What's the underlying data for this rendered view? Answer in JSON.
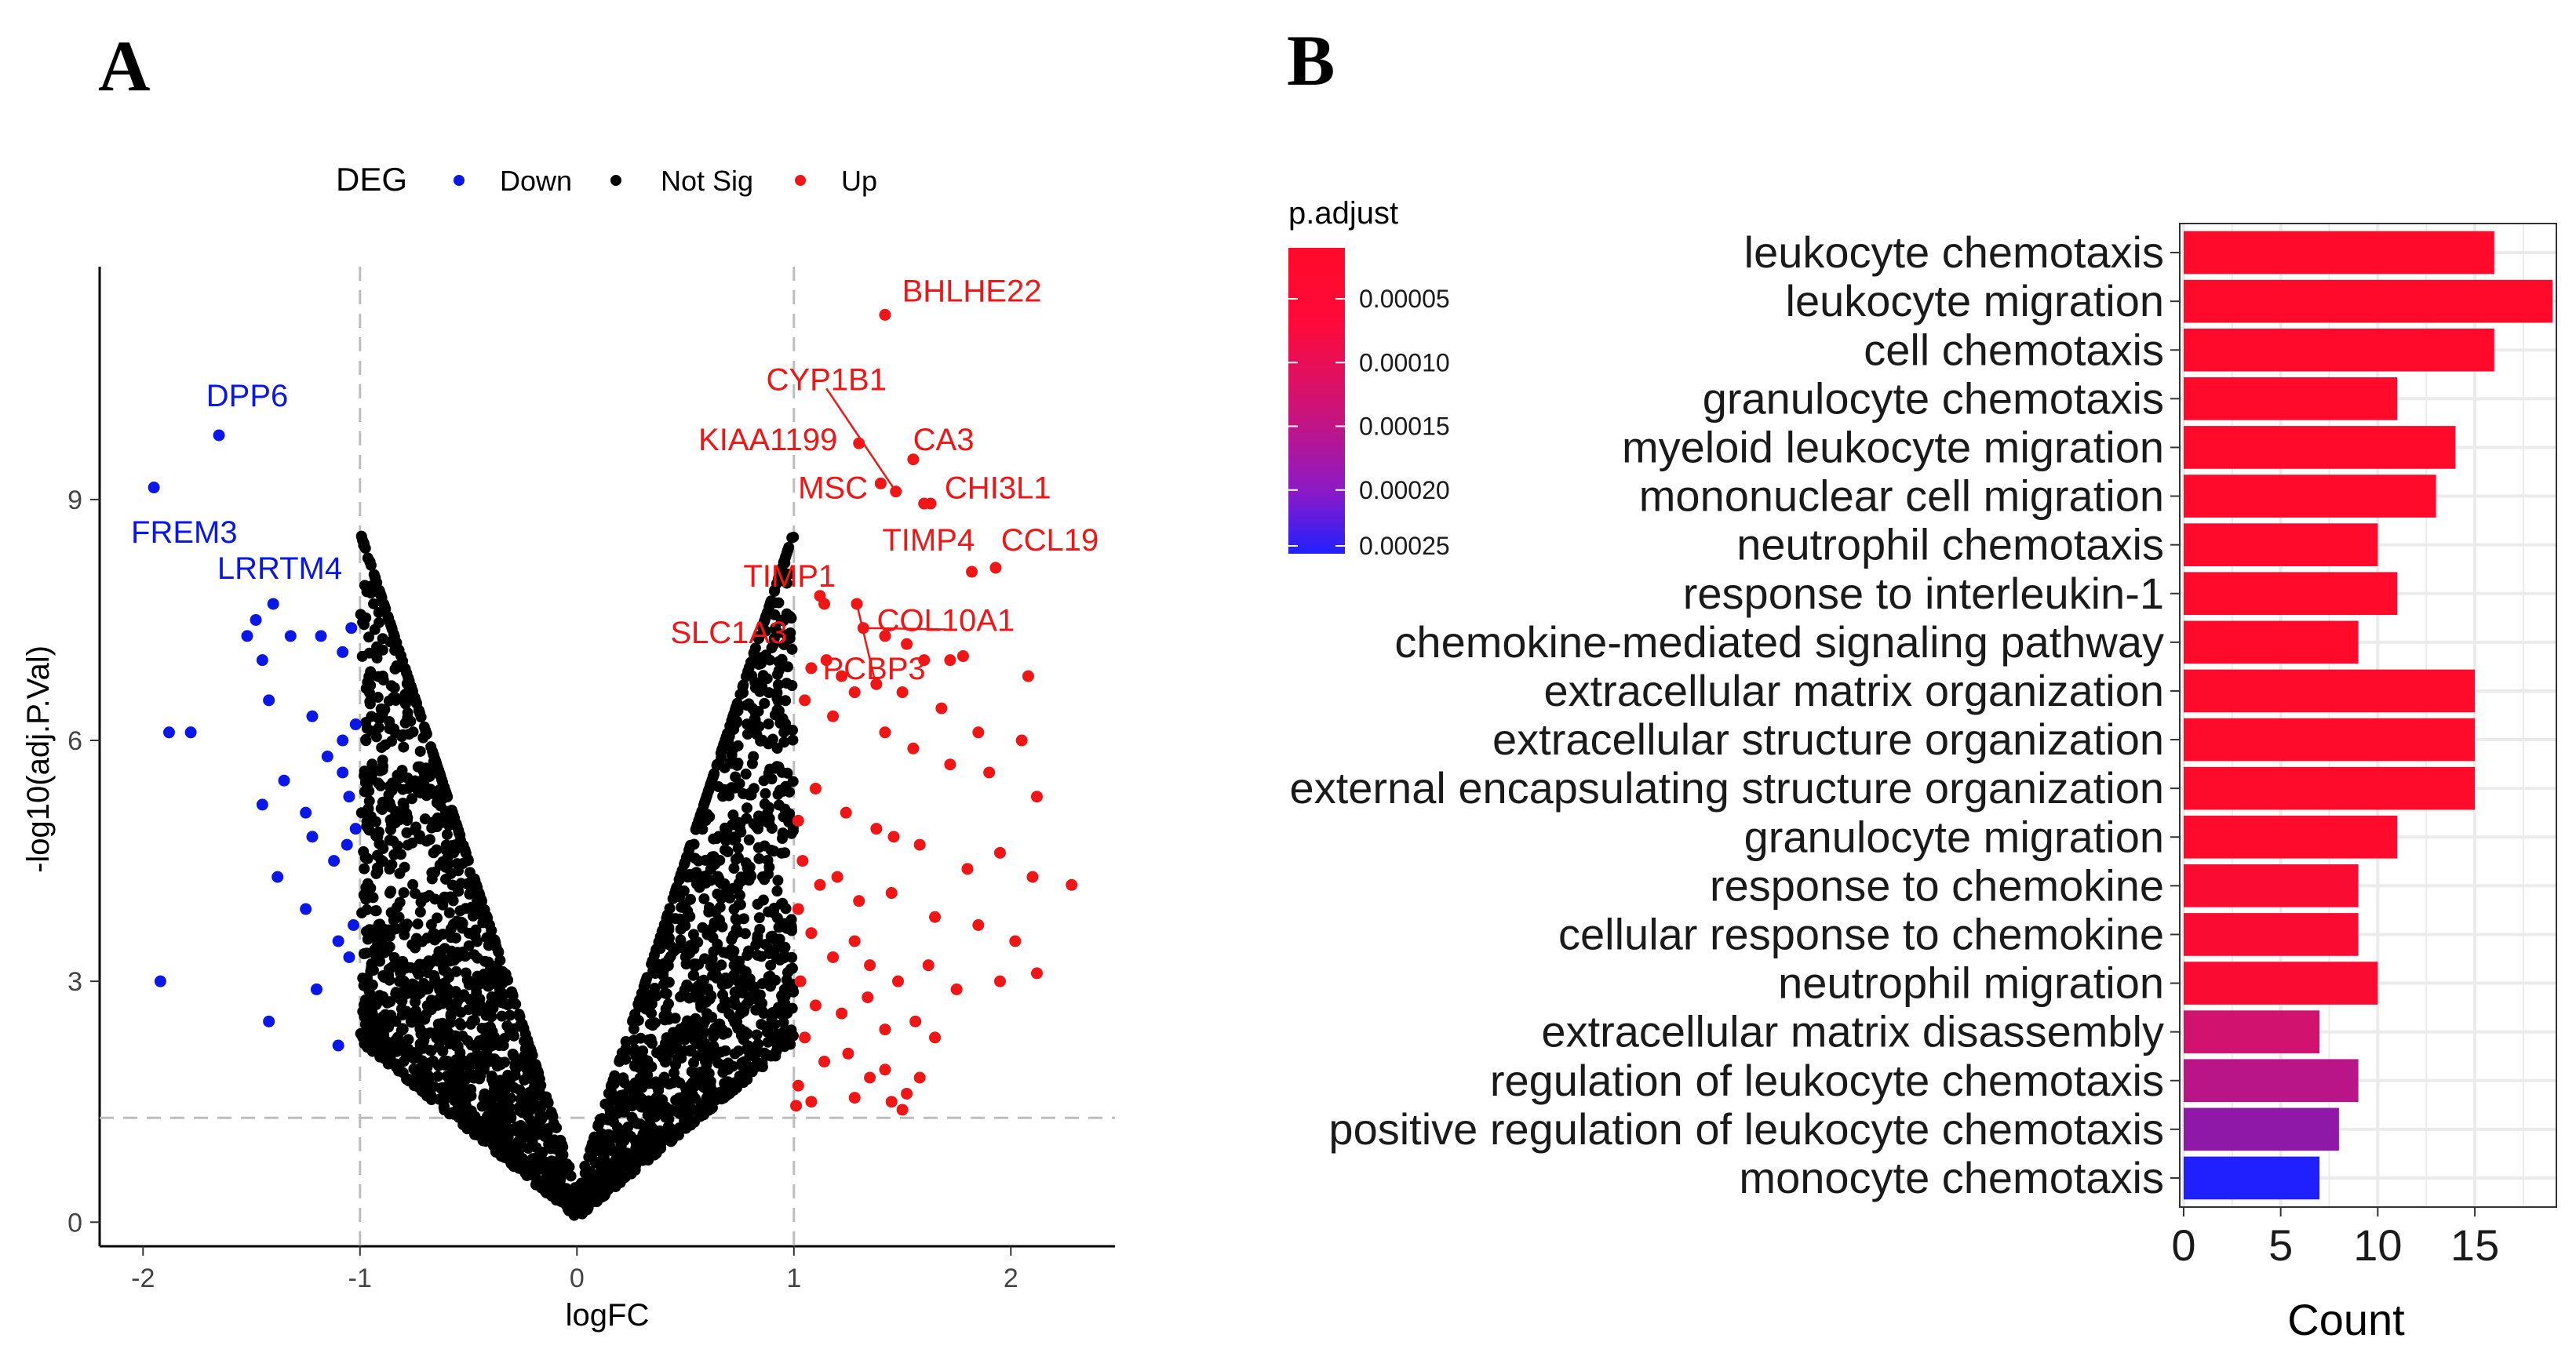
{
  "panel_labels": {
    "a": "A",
    "b": "B"
  },
  "colors": {
    "down": "#0a17e6",
    "not_sig": "#000000",
    "up": "#f01616",
    "grid": "#ebebeb",
    "threshold": "#bdbdbd",
    "grad_low": "#ff0a2a",
    "grad_mid": "#c8147d",
    "grad_high": "#2020ff"
  },
  "chart_data": [
    {
      "type": "scatter",
      "title": "",
      "xlabel": "logFC",
      "ylabel": "-log10(adj.P.Val)",
      "xlim": [
        -2.2,
        2.48
      ],
      "ylim": [
        -0.3,
        11.9
      ],
      "xticks": [
        -2,
        -1,
        0,
        1,
        2
      ],
      "yticks": [
        0,
        3,
        6,
        9
      ],
      "xtick_labels": [
        "-2",
        "-1",
        "0",
        "1",
        "2"
      ],
      "ytick_labels": [
        "0",
        "3",
        "6",
        "9"
      ],
      "thresholds": {
        "logfc": [
          -1,
          1
        ],
        "neglog10p": 1.3
      },
      "legend": {
        "title": "DEG",
        "position": "top",
        "entries": [
          "Down",
          "Not Sig",
          "Up"
        ]
      },
      "series": [
        {
          "name": "Down",
          "color": "#0a17e6",
          "points": [
            [
              -1.95,
              9.15
            ],
            [
              -1.65,
              9.8
            ],
            [
              -1.52,
              7.3
            ],
            [
              -1.48,
              7.5
            ],
            [
              -1.45,
              7.0
            ],
            [
              -1.4,
              7.7
            ],
            [
              -1.32,
              7.3
            ],
            [
              -1.18,
              7.3
            ],
            [
              -1.08,
              7.1
            ],
            [
              -1.04,
              7.4
            ],
            [
              -1.88,
              6.1
            ],
            [
              -1.78,
              6.1
            ],
            [
              -1.42,
              6.5
            ],
            [
              -1.22,
              6.3
            ],
            [
              -1.08,
              6.0
            ],
            [
              -1.02,
              6.2
            ],
            [
              -1.45,
              5.2
            ],
            [
              -1.35,
              5.5
            ],
            [
              -1.25,
              5.1
            ],
            [
              -1.15,
              5.8
            ],
            [
              -1.08,
              5.6
            ],
            [
              -1.05,
              5.3
            ],
            [
              -1.02,
              4.9
            ],
            [
              -1.38,
              4.3
            ],
            [
              -1.22,
              4.8
            ],
            [
              -1.12,
              4.5
            ],
            [
              -1.06,
              4.7
            ],
            [
              -1.25,
              3.9
            ],
            [
              -1.1,
              3.5
            ],
            [
              -1.03,
              3.7
            ],
            [
              -1.92,
              3.0
            ],
            [
              -1.42,
              2.5
            ],
            [
              -1.2,
              2.9
            ],
            [
              -1.1,
              2.2
            ],
            [
              -1.05,
              3.3
            ]
          ]
        },
        {
          "name": "Up",
          "color": "#f01616",
          "points": [
            [
              1.42,
              11.3
            ],
            [
              1.55,
              9.5
            ],
            [
              1.3,
              9.7
            ],
            [
              1.4,
              9.2
            ],
            [
              1.47,
              9.1
            ],
            [
              1.6,
              8.95
            ],
            [
              1.63,
              8.95
            ],
            [
              1.82,
              8.1
            ],
            [
              1.93,
              8.15
            ],
            [
              1.12,
              7.8
            ],
            [
              1.14,
              7.7
            ],
            [
              1.29,
              7.7
            ],
            [
              1.32,
              7.4
            ],
            [
              1.42,
              7.3
            ],
            [
              1.52,
              7.2
            ],
            [
              1.6,
              7.0
            ],
            [
              1.72,
              7.0
            ],
            [
              1.78,
              7.05
            ],
            [
              2.08,
              6.8
            ],
            [
              1.08,
              6.9
            ],
            [
              1.15,
              7.0
            ],
            [
              1.22,
              6.8
            ],
            [
              1.38,
              6.7
            ],
            [
              1.5,
              6.6
            ],
            [
              1.68,
              6.4
            ],
            [
              1.85,
              6.1
            ],
            [
              2.05,
              6.0
            ],
            [
              1.05,
              6.5
            ],
            [
              1.18,
              6.3
            ],
            [
              1.28,
              6.6
            ],
            [
              1.42,
              6.1
            ],
            [
              1.55,
              5.9
            ],
            [
              1.72,
              5.7
            ],
            [
              1.9,
              5.6
            ],
            [
              2.12,
              5.3
            ],
            [
              1.02,
              5.0
            ],
            [
              1.1,
              5.4
            ],
            [
              1.24,
              5.1
            ],
            [
              1.38,
              4.9
            ],
            [
              1.46,
              4.8
            ],
            [
              1.58,
              4.7
            ],
            [
              1.8,
              4.4
            ],
            [
              1.95,
              4.6
            ],
            [
              2.1,
              4.3
            ],
            [
              2.28,
              4.2
            ],
            [
              1.04,
              4.5
            ],
            [
              1.12,
              4.2
            ],
            [
              1.2,
              4.3
            ],
            [
              1.3,
              4.0
            ],
            [
              1.45,
              4.1
            ],
            [
              1.65,
              3.8
            ],
            [
              1.85,
              3.7
            ],
            [
              2.02,
              3.5
            ],
            [
              1.02,
              3.9
            ],
            [
              1.08,
              3.6
            ],
            [
              1.18,
              3.3
            ],
            [
              1.28,
              3.5
            ],
            [
              1.35,
              3.2
            ],
            [
              1.48,
              3.0
            ],
            [
              1.62,
              3.2
            ],
            [
              1.75,
              2.9
            ],
            [
              1.95,
              3.0
            ],
            [
              2.12,
              3.1
            ],
            [
              1.03,
              3.0
            ],
            [
              1.1,
              2.7
            ],
            [
              1.22,
              2.6
            ],
            [
              1.34,
              2.8
            ],
            [
              1.42,
              2.4
            ],
            [
              1.56,
              2.5
            ],
            [
              1.65,
              2.3
            ],
            [
              1.05,
              2.3
            ],
            [
              1.14,
              2.0
            ],
            [
              1.25,
              2.1
            ],
            [
              1.35,
              1.8
            ],
            [
              1.42,
              1.9
            ],
            [
              1.52,
              1.6
            ],
            [
              1.58,
              1.8
            ],
            [
              1.02,
              1.7
            ],
            [
              1.08,
              1.5
            ],
            [
              1.28,
              1.55
            ],
            [
              1.45,
              1.5
            ],
            [
              1.5,
              1.4
            ],
            [
              1.01,
              1.45
            ]
          ]
        }
      ],
      "labels": [
        {
          "text": "DPP6",
          "group": "Down",
          "x": -1.65,
          "y": 9.8,
          "lx": -1.52,
          "ly": 10.3
        },
        {
          "text": "FREM3",
          "group": "Down",
          "x": -1.95,
          "y": 9.15,
          "lx": -1.81,
          "ly": 8.6
        },
        {
          "text": "LRRTM4",
          "group": "Down",
          "x": -1.4,
          "y": 7.7,
          "lx": -1.37,
          "ly": 8.15
        },
        {
          "text": "BHLHE22",
          "group": "Up",
          "x": 1.42,
          "y": 11.3,
          "lx": 1.82,
          "ly": 11.6
        },
        {
          "text": "CYP1B1",
          "group": "Up",
          "x": 1.47,
          "y": 9.1,
          "lx": 1.15,
          "ly": 10.5,
          "leader": true
        },
        {
          "text": "KIAA1199",
          "group": "Up",
          "x": 1.3,
          "y": 9.7,
          "lx": 0.88,
          "ly": 9.75
        },
        {
          "text": "CA3",
          "group": "Up",
          "x": 1.55,
          "y": 9.5,
          "lx": 1.69,
          "ly": 9.75
        },
        {
          "text": "MSC",
          "group": "Up",
          "x": 1.4,
          "y": 9.2,
          "lx": 1.18,
          "ly": 9.15
        },
        {
          "text": "CHI3L1",
          "group": "Up",
          "x": 1.63,
          "y": 8.95,
          "lx": 1.94,
          "ly": 9.15
        },
        {
          "text": "TIMP4",
          "group": "Up",
          "x": 1.82,
          "y": 8.1,
          "lx": 1.62,
          "ly": 8.5
        },
        {
          "text": "CCL19",
          "group": "Up",
          "x": 1.93,
          "y": 8.15,
          "lx": 2.18,
          "ly": 8.5
        },
        {
          "text": "TIMP1",
          "group": "Up",
          "x": 1.12,
          "y": 7.8,
          "lx": 0.98,
          "ly": 8.05
        },
        {
          "text": "COL10A1",
          "group": "Up",
          "x": 1.32,
          "y": 7.4,
          "lx": 1.7,
          "ly": 7.5,
          "leader": true
        },
        {
          "text": "SLC1A3",
          "group": "Up",
          "x": 1.14,
          "y": 7.7,
          "lx": 0.7,
          "ly": 7.35
        },
        {
          "text": "PCBP3",
          "group": "Up",
          "x": 1.29,
          "y": 7.7,
          "lx": 1.37,
          "ly": 6.9,
          "leader": true
        }
      ]
    },
    {
      "type": "bar",
      "orientation": "horizontal",
      "title": "",
      "xlabel": "Count",
      "ylabel": "",
      "xlim": [
        -0.2,
        19.2
      ],
      "xticks": [
        0,
        5,
        10,
        15
      ],
      "xtick_labels": [
        "0",
        "5",
        "10",
        "15"
      ],
      "color_legend": {
        "title": "p.adjust",
        "position": "top-left",
        "range": [
          1e-05,
          0.00025
        ],
        "ticks": [
          "0.00005",
          "0.00010",
          "0.00015",
          "0.00020",
          "0.00025"
        ]
      },
      "categories": [
        "leukocyte chemotaxis",
        "leukocyte migration",
        "cell chemotaxis",
        "granulocyte chemotaxis",
        "myeloid leukocyte migration",
        "mononuclear cell migration",
        "neutrophil chemotaxis",
        "response to interleukin-1",
        "chemokine-mediated signaling pathway",
        "extracellular matrix organization",
        "extracellular structure organization",
        "external encapsulating structure organization",
        "granulocyte migration",
        "response to chemokine",
        "cellular response to chemokine",
        "neutrophil migration",
        "extracellular matrix disassembly",
        "regulation of leukocyte chemotaxis",
        "positive regulation of leukocyte chemotaxis",
        "monocyte chemotaxis"
      ],
      "values": [
        16,
        19,
        16,
        11,
        14,
        13,
        10,
        11,
        9,
        15,
        15,
        15,
        11,
        9,
        9,
        10,
        7,
        9,
        8,
        7
      ],
      "p_adjust": [
        1e-05,
        1e-05,
        1e-05,
        1e-05,
        1e-05,
        1e-05,
        1e-05,
        1e-05,
        1e-05,
        1.2e-05,
        1.2e-05,
        1.2e-05,
        1.5e-05,
        2e-05,
        2e-05,
        2.2e-05,
        0.00011,
        0.00014,
        0.00017,
        0.00025
      ]
    }
  ]
}
